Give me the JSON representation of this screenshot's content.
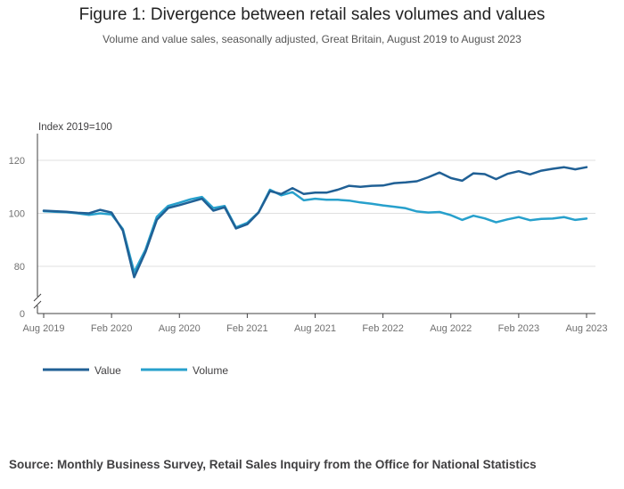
{
  "chart_data": {
    "type": "line",
    "title": "Figure 1: Divergence between retail sales volumes and values",
    "subtitle": "Volume and value sales, seasonally adjusted, Great Britain, August 2019 to August 2023",
    "ylabel": "Index 2019=100",
    "ylim": [
      0,
      130
    ],
    "y_axis_break": true,
    "yticks": [
      0,
      80,
      100,
      120
    ],
    "ytick_labels": [
      "0",
      "80",
      "100",
      "120"
    ],
    "x_tick_labels": [
      "Aug 2019",
      "Feb 2020",
      "Aug 2020",
      "Feb 2021",
      "Aug 2021",
      "Feb 2022",
      "Aug 2022",
      "Feb 2023",
      "Aug 2023"
    ],
    "x_tick_indices": [
      0,
      6,
      12,
      18,
      24,
      30,
      36,
      42,
      48
    ],
    "categories": [
      "Aug 2019",
      "Sep 2019",
      "Oct 2019",
      "Nov 2019",
      "Dec 2019",
      "Jan 2020",
      "Feb 2020",
      "Mar 2020",
      "Apr 2020",
      "May 2020",
      "Jun 2020",
      "Jul 2020",
      "Aug 2020",
      "Sep 2020",
      "Oct 2020",
      "Nov 2020",
      "Dec 2020",
      "Jan 2021",
      "Feb 2021",
      "Mar 2021",
      "Apr 2021",
      "May 2021",
      "Jun 2021",
      "Jul 2021",
      "Aug 2021",
      "Sep 2021",
      "Oct 2021",
      "Nov 2021",
      "Dec 2021",
      "Jan 2022",
      "Feb 2022",
      "Mar 2022",
      "Apr 2022",
      "May 2022",
      "Jun 2022",
      "Jul 2022",
      "Aug 2022",
      "Sep 2022",
      "Oct 2022",
      "Nov 2022",
      "Dec 2022",
      "Jan 2023",
      "Feb 2023",
      "Mar 2023",
      "Apr 2023",
      "May 2023",
      "Jun 2023",
      "Jul 2023",
      "Aug 2023"
    ],
    "series": [
      {
        "name": "Value",
        "color": "#206095",
        "values": [
          101.0,
          100.8,
          100.6,
          100.2,
          100.0,
          101.3,
          100.3,
          93.5,
          75.9,
          85.4,
          97.5,
          102.0,
          103.1,
          104.3,
          105.5,
          101.0,
          102.3,
          94.3,
          95.9,
          100.3,
          108.4,
          107.3,
          109.5,
          107.3,
          107.8,
          107.8,
          108.9,
          110.4,
          110.0,
          110.4,
          110.5,
          111.4,
          111.7,
          112.1,
          113.6,
          115.4,
          113.3,
          112.3,
          115.1,
          114.8,
          112.9,
          114.9,
          115.9,
          114.7,
          116.1,
          116.8,
          117.4,
          116.6,
          117.4
        ]
      },
      {
        "name": "Volume",
        "color": "#27a0cc",
        "values": [
          100.8,
          100.6,
          100.4,
          100.0,
          99.4,
          100.0,
          99.6,
          94.1,
          77.8,
          86.3,
          98.7,
          102.8,
          104.0,
          105.3,
          106.2,
          102.0,
          102.8,
          94.7,
          96.4,
          100.4,
          108.9,
          106.8,
          108.0,
          104.9,
          105.5,
          105.1,
          105.1,
          104.8,
          104.1,
          103.6,
          103.0,
          102.5,
          101.9,
          100.7,
          100.3,
          100.5,
          99.3,
          97.5,
          99.1,
          98.1,
          96.6,
          97.7,
          98.6,
          97.4,
          97.9,
          98.0,
          98.6,
          97.5,
          98.0
        ]
      }
    ],
    "legend_position": "bottom-left"
  },
  "source": "Source: Monthly Business Survey, Retail Sales Inquiry from the Office for National Statistics"
}
